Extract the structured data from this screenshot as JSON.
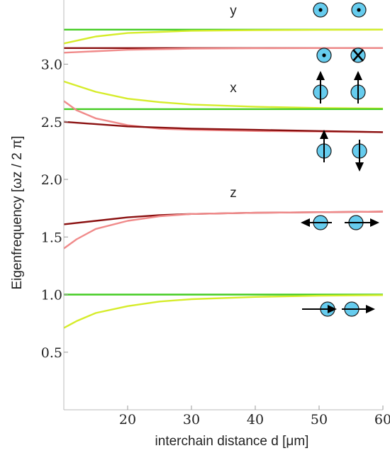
{
  "chart_data": {
    "type": "line",
    "xlabel": "interchain distance d [μm]",
    "ylabel": "Eigenfrequency [ωz / 2 π]",
    "xlim": [
      10,
      60
    ],
    "ylim": [
      0,
      3.4
    ],
    "x_ticks": [
      "20",
      "30",
      "40",
      "50",
      "60"
    ],
    "y_ticks": [
      "0.5",
      "1.0",
      "1.5",
      "2.0",
      "2.5",
      "3.0"
    ],
    "grid": false,
    "band_labels": [
      "y",
      "x",
      "z"
    ],
    "colors": {
      "green": "#44cc22",
      "yellow": "#d6ec2a",
      "pink": "#f08a8a",
      "darkred": "#8a1010",
      "ion": "#66ccee"
    },
    "series": [
      {
        "color": "green",
        "x": [
          10,
          60
        ],
        "y": [
          3.3,
          3.3
        ]
      },
      {
        "color": "yellow",
        "x": [
          10,
          15,
          20,
          25,
          30,
          40,
          50,
          60
        ],
        "y": [
          3.18,
          3.24,
          3.27,
          3.28,
          3.29,
          3.295,
          3.298,
          3.3
        ]
      },
      {
        "color": "darkred",
        "x": [
          10,
          20,
          30,
          40,
          50,
          60
        ],
        "y": [
          3.14,
          3.14,
          3.14,
          3.14,
          3.14,
          3.14
        ]
      },
      {
        "color": "pink",
        "x": [
          10,
          20,
          30,
          40,
          50,
          60
        ],
        "y": [
          3.1,
          3.125,
          3.135,
          3.138,
          3.14,
          3.14
        ]
      },
      {
        "color": "yellow",
        "x": [
          10,
          15,
          20,
          25,
          30,
          40,
          50,
          60
        ],
        "y": [
          2.85,
          2.76,
          2.7,
          2.67,
          2.65,
          2.63,
          2.62,
          2.615
        ]
      },
      {
        "color": "green",
        "x": [
          10,
          60
        ],
        "y": [
          2.61,
          2.61
        ]
      },
      {
        "color": "pink",
        "x": [
          10,
          12,
          15,
          20,
          25,
          30,
          40,
          50,
          60
        ],
        "y": [
          2.68,
          2.6,
          2.53,
          2.47,
          2.44,
          2.43,
          2.42,
          2.415,
          2.41
        ]
      },
      {
        "color": "darkred",
        "x": [
          10,
          20,
          30,
          40,
          50,
          60
        ],
        "y": [
          2.5,
          2.46,
          2.44,
          2.43,
          2.42,
          2.41
        ]
      },
      {
        "color": "darkred",
        "x": [
          10,
          15,
          20,
          25,
          30,
          40,
          50,
          60
        ],
        "y": [
          1.61,
          1.64,
          1.67,
          1.69,
          1.7,
          1.71,
          1.715,
          1.72
        ]
      },
      {
        "color": "pink",
        "x": [
          10,
          12,
          15,
          20,
          25,
          30,
          40,
          50,
          60
        ],
        "y": [
          1.4,
          1.48,
          1.57,
          1.64,
          1.68,
          1.7,
          1.71,
          1.715,
          1.72
        ]
      },
      {
        "color": "green",
        "x": [
          10,
          60
        ],
        "y": [
          1.0,
          1.0
        ]
      },
      {
        "color": "yellow",
        "x": [
          10,
          12,
          15,
          20,
          25,
          30,
          40,
          50,
          60
        ],
        "y": [
          0.71,
          0.77,
          0.84,
          0.9,
          0.94,
          0.96,
          0.98,
          0.99,
          0.995
        ]
      }
    ]
  }
}
